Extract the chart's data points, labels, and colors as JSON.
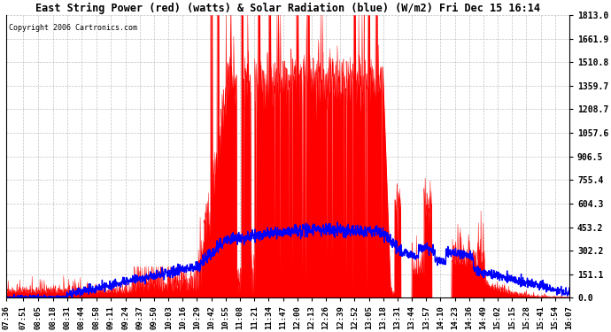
{
  "title": "East String Power (red) (watts) & Solar Radiation (blue) (W/m2) Fri Dec 15 16:14",
  "copyright": "Copyright 2006 Cartronics.com",
  "y_ticks": [
    0.0,
    151.1,
    302.2,
    453.2,
    604.3,
    755.4,
    906.5,
    1057.6,
    1208.7,
    1359.7,
    1510.8,
    1661.9,
    1813.0
  ],
  "y_max": 1813.0,
  "y_min": 0.0,
  "background_color": "#ffffff",
  "grid_color": "#aaaaaa",
  "red_color": "#ff0000",
  "blue_color": "#0000ff",
  "x_labels": [
    "07:36",
    "07:51",
    "08:05",
    "08:18",
    "08:31",
    "08:44",
    "08:58",
    "09:11",
    "09:24",
    "09:37",
    "09:50",
    "10:03",
    "10:16",
    "10:29",
    "10:42",
    "10:55",
    "11:08",
    "11:21",
    "11:34",
    "11:47",
    "12:00",
    "12:13",
    "12:26",
    "12:39",
    "12:52",
    "13:05",
    "13:18",
    "13:31",
    "13:44",
    "13:57",
    "14:10",
    "14:23",
    "14:36",
    "14:49",
    "15:02",
    "15:15",
    "15:28",
    "15:41",
    "15:54",
    "16:07"
  ]
}
